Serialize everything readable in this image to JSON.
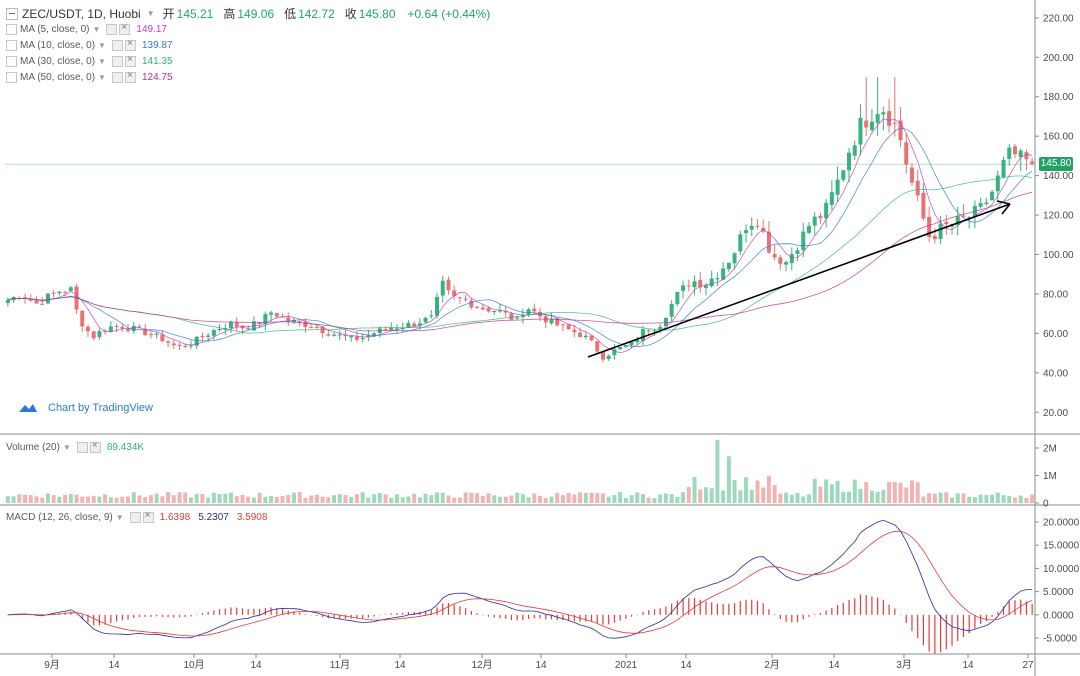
{
  "header": {
    "symbol": "ZEC/USDT, 1D, Huobi",
    "open_label": "开",
    "open": "145.21",
    "high_label": "高",
    "high": "149.06",
    "low_label": "低",
    "low": "142.72",
    "close_label": "收",
    "close": "145.80",
    "change": "+0.64 (+0.44%)"
  },
  "indicators": {
    "ma5": {
      "label": "MA (5, close, 0)",
      "value": "149.17",
      "color": "#c03cc0"
    },
    "ma10": {
      "label": "MA (10, close, 0)",
      "value": "139.87",
      "color": "#2a7bd5"
    },
    "ma30": {
      "label": "MA (30, close, 0)",
      "value": "141.35",
      "color": "#2fb56a"
    },
    "ma50": {
      "label": "MA (50, close, 0)",
      "value": "124.75",
      "color": "#b52f8a"
    },
    "volume": {
      "label": "Volume (20)",
      "value": "89.434K",
      "color": "#2fb56a"
    },
    "macd": {
      "label": "MACD (12, 26, close, 9)",
      "hist": "1.6398",
      "macd": "5.2307",
      "signal": "3.5908",
      "hist_color": "#e23b3b",
      "macd_color": "#2a2aa8",
      "signal_color": "#e23b3b"
    }
  },
  "branding": {
    "text": "Chart by TradingView"
  },
  "last_price": "145.80",
  "chart_data": [
    {
      "type": "candlestick",
      "pane": "price",
      "y_ticks": [
        "220.00",
        "200.00",
        "180.00",
        "160.00",
        "140.00",
        "120.00",
        "100.00",
        "80.00",
        "60.00",
        "40.00",
        "20.00"
      ],
      "ylim": [
        10,
        225
      ],
      "x_ticks": [
        "9月",
        "14",
        "10月",
        "14",
        "11月",
        "14",
        "12月",
        "14",
        "2021",
        "14",
        "2月",
        "14",
        "3月",
        "14",
        "27"
      ],
      "close_path": [
        [
          0,
          77
        ],
        [
          8,
          80
        ],
        [
          16,
          75
        ],
        [
          24,
          79
        ],
        [
          30,
          82
        ],
        [
          36,
          82
        ],
        [
          40,
          68
        ],
        [
          48,
          58
        ],
        [
          56,
          63
        ],
        [
          64,
          64
        ],
        [
          72,
          62
        ],
        [
          80,
          60
        ],
        [
          88,
          57
        ],
        [
          96,
          53
        ],
        [
          104,
          55
        ],
        [
          112,
          59
        ],
        [
          118,
          62
        ],
        [
          126,
          65
        ],
        [
          134,
          63
        ],
        [
          142,
          65
        ],
        [
          150,
          71
        ],
        [
          158,
          67
        ],
        [
          166,
          65
        ],
        [
          174,
          64
        ],
        [
          180,
          61
        ],
        [
          188,
          59
        ],
        [
          196,
          57
        ],
        [
          202,
          58
        ],
        [
          210,
          61
        ],
        [
          218,
          63
        ],
        [
          226,
          64
        ],
        [
          234,
          66
        ],
        [
          242,
          68
        ],
        [
          246,
          86
        ],
        [
          252,
          78
        ],
        [
          260,
          77
        ],
        [
          268,
          73
        ],
        [
          276,
          72
        ],
        [
          282,
          70
        ],
        [
          290,
          66
        ],
        [
          294,
          74
        ],
        [
          302,
          69
        ],
        [
          310,
          65
        ],
        [
          318,
          62
        ],
        [
          324,
          60
        ],
        [
          330,
          57
        ],
        [
          338,
          48
        ],
        [
          346,
          52
        ],
        [
          354,
          54
        ],
        [
          362,
          62
        ],
        [
          370,
          64
        ],
        [
          376,
          73
        ],
        [
          380,
          79
        ],
        [
          388,
          87
        ],
        [
          396,
          85
        ],
        [
          404,
          91
        ],
        [
          412,
          100
        ],
        [
          420,
          116
        ],
        [
          426,
          118
        ],
        [
          434,
          100
        ],
        [
          442,
          96
        ],
        [
          450,
          107
        ],
        [
          456,
          116
        ],
        [
          464,
          121
        ],
        [
          472,
          138
        ],
        [
          478,
          153
        ],
        [
          484,
          165
        ],
        [
          490,
          171
        ],
        [
          496,
          176
        ],
        [
          500,
          171
        ],
        [
          506,
          163
        ],
        [
          512,
          141
        ],
        [
          518,
          124
        ],
        [
          524,
          108
        ],
        [
          530,
          113
        ],
        [
          538,
          116
        ],
        [
          546,
          119
        ],
        [
          554,
          124
        ],
        [
          560,
          133
        ],
        [
          566,
          146
        ],
        [
          570,
          152
        ],
        [
          576,
          148
        ],
        [
          582,
          146
        ]
      ],
      "trend_line": [
        [
          588,
          357
        ],
        [
          1010,
          204
        ]
      ],
      "last_close": 145.8
    },
    {
      "type": "bar",
      "pane": "volume",
      "y_ticks": [
        "2M",
        "1M",
        "0"
      ],
      "ylim": [
        0,
        2400000
      ]
    },
    {
      "type": "histogram+lines",
      "pane": "macd",
      "y_ticks": [
        "20.0000",
        "15.0000",
        "10.0000",
        "5.0000",
        "0.0000",
        "-5.0000"
      ],
      "ylim": [
        -8,
        23
      ]
    }
  ]
}
